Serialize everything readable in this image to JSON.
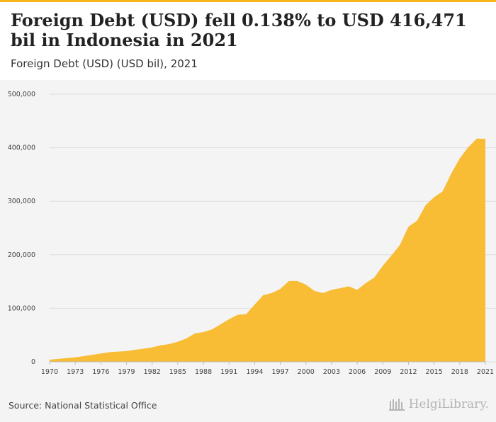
{
  "header": {
    "title": "Foreign Debt (USD) fell 0.138% to USD 416,471 bil in Indonesia in 2021",
    "subtitle": "Foreign Debt (USD) (USD bil), 2021"
  },
  "footer": {
    "source": "Source: National Statistical Office",
    "brand": "HelgiLibrary.",
    "brand_icon": "library-columns-icon"
  },
  "colors": {
    "accent": "#f5b41a",
    "area": "#f8bc35",
    "grid": "#dddddd",
    "background": "#f4f4f4"
  },
  "chart_data": {
    "type": "area",
    "title": "Foreign Debt (USD) fell 0.138% to USD 416,471 bil in Indonesia in 2021",
    "subtitle": "Foreign Debt (USD) (USD bil), 2021",
    "xlabel": "",
    "ylabel": "",
    "grid": true,
    "legend": "none",
    "xlim": [
      1970,
      2021
    ],
    "ylim": [
      0,
      500000
    ],
    "x_tick_labels": [
      "1970",
      "1973",
      "1976",
      "1979",
      "1982",
      "1985",
      "1988",
      "1991",
      "1994",
      "1997",
      "2000",
      "2003",
      "2006",
      "2009",
      "2012",
      "2015",
      "2018",
      "2021"
    ],
    "y_tick_labels": [
      "0",
      "100,000",
      "200,000",
      "300,000",
      "400,000",
      "500,000"
    ],
    "series": [
      {
        "x": [
          1970,
          1971,
          1972,
          1973,
          1974,
          1975,
          1976,
          1977,
          1978,
          1979,
          1980,
          1981,
          1982,
          1983,
          1984,
          1985,
          1986,
          1987,
          1988,
          1989,
          1990,
          1991,
          1992,
          1993,
          1994,
          1995,
          1996,
          1997,
          1998,
          1999,
          2000,
          2001,
          2002,
          2003,
          2004,
          2005,
          2006,
          2007,
          2008,
          2009,
          2010,
          2011,
          2012,
          2013,
          2014,
          2015,
          2016,
          2017,
          2018,
          2019,
          2020,
          2021
        ],
        "values": [
          4000,
          5500,
          7000,
          8500,
          10500,
          13000,
          15500,
          18000,
          19000,
          20000,
          22500,
          24500,
          27000,
          31000,
          33000,
          37500,
          43500,
          53000,
          55500,
          60500,
          70000,
          79500,
          88000,
          89000,
          107000,
          124500,
          128500,
          136000,
          151000,
          151000,
          144000,
          132500,
          128500,
          134500,
          137500,
          141000,
          134500,
          147000,
          157500,
          179500,
          198500,
          218500,
          252500,
          263500,
          292500,
          307500,
          318500,
          351500,
          380000,
          401000,
          417000,
          416471
        ]
      }
    ]
  }
}
